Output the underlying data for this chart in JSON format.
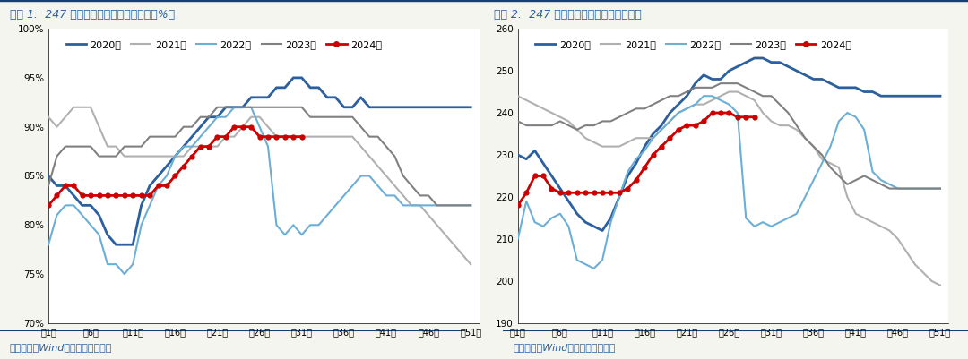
{
  "chart1_title": "图表 1:  247 家样本钢厂炼铁产能利用率（%）",
  "chart2_title": "图表 2:  247 家钢厂日均铁水产量（万吨）",
  "source_text": "资料来源：Wind，国盛证券研究所",
  "x_ticks": [
    "第1周",
    "第6周",
    "第11周",
    "第16周",
    "第21周",
    "第26周",
    "第31周",
    "第36周",
    "第41周",
    "第46周",
    "第51周"
  ],
  "x_tick_pos": [
    1,
    6,
    11,
    16,
    21,
    26,
    31,
    36,
    41,
    46,
    51
  ],
  "legend_labels": [
    "2020年",
    "2021年",
    "2022年",
    "2023年",
    "2024年"
  ],
  "colors": {
    "2020": "#2c5f9e",
    "2021": "#b0b0b0",
    "2022": "#6baed6",
    "2023": "#808080",
    "2024": "#cc0000"
  },
  "title_color": "#2c5f9e",
  "source_color": "#2c5f9e",
  "background": "#f5f5f0",
  "chart1_ylim": [
    70,
    100
  ],
  "chart1_yticks": [
    70,
    75,
    80,
    85,
    90,
    95,
    100
  ],
  "chart1_ytick_labels": [
    "70%",
    "75%",
    "80%",
    "85%",
    "90%",
    "95%",
    "100%"
  ],
  "chart2_ylim": [
    190,
    260
  ],
  "chart2_yticks": [
    190,
    200,
    210,
    220,
    230,
    240,
    250,
    260
  ],
  "chart2_ytick_labels": [
    "190",
    "200",
    "210",
    "220",
    "230",
    "240",
    "250",
    "260"
  ],
  "chart1_2020": [
    85,
    84,
    84,
    83,
    82,
    82,
    81,
    79,
    78,
    78,
    78,
    82,
    84,
    85,
    86,
    87,
    88,
    89,
    90,
    91,
    91,
    92,
    92,
    92,
    93,
    93,
    93,
    94,
    94,
    95,
    95,
    94,
    94,
    93,
    93,
    92,
    92,
    93,
    92,
    92,
    92,
    92,
    92,
    92,
    92,
    92,
    92,
    92,
    92,
    92,
    92
  ],
  "chart1_2021": [
    91,
    90,
    91,
    92,
    92,
    92,
    90,
    88,
    88,
    87,
    87,
    87,
    87,
    87,
    87,
    87,
    87,
    88,
    88,
    88,
    88,
    89,
    89,
    90,
    91,
    91,
    90,
    89,
    89,
    89,
    89,
    89,
    89,
    89,
    89,
    89,
    89,
    88,
    87,
    86,
    85,
    84,
    83,
    82,
    82,
    81,
    80,
    79,
    78,
    77,
    76
  ],
  "chart1_2022": [
    78,
    81,
    82,
    82,
    81,
    80,
    79,
    76,
    76,
    75,
    76,
    80,
    82,
    84,
    85,
    87,
    88,
    88,
    89,
    90,
    91,
    91,
    92,
    92,
    92,
    90,
    88,
    80,
    79,
    80,
    79,
    80,
    80,
    81,
    82,
    83,
    84,
    85,
    85,
    84,
    83,
    83,
    82,
    82,
    82,
    82,
    82,
    82,
    82,
    82,
    82
  ],
  "chart1_2023": [
    84,
    87,
    88,
    88,
    88,
    88,
    87,
    87,
    87,
    88,
    88,
    88,
    89,
    89,
    89,
    89,
    90,
    90,
    91,
    91,
    92,
    92,
    92,
    92,
    92,
    92,
    92,
    92,
    92,
    92,
    92,
    91,
    91,
    91,
    91,
    91,
    91,
    90,
    89,
    89,
    88,
    87,
    85,
    84,
    83,
    83,
    82,
    82,
    82,
    82,
    82
  ],
  "chart1_2024": [
    82,
    83,
    84,
    84,
    83,
    83,
    83,
    83,
    83,
    83,
    83,
    83,
    83,
    84,
    84,
    85,
    86,
    87,
    88,
    88,
    89,
    89,
    90,
    90,
    90,
    89,
    89,
    89,
    89,
    89,
    89,
    null,
    null,
    null,
    null,
    null,
    null,
    null,
    null,
    null,
    null,
    null,
    null,
    null,
    null,
    null,
    null,
    null,
    null,
    null,
    null
  ],
  "chart2_2020": [
    230,
    229,
    231,
    228,
    225,
    222,
    219,
    216,
    214,
    213,
    212,
    215,
    220,
    225,
    228,
    232,
    235,
    237,
    240,
    242,
    244,
    247,
    249,
    248,
    248,
    250,
    251,
    252,
    253,
    253,
    252,
    252,
    251,
    250,
    249,
    248,
    248,
    247,
    246,
    246,
    246,
    245,
    245,
    244,
    244,
    244,
    244,
    244,
    244,
    244,
    244
  ],
  "chart2_2021": [
    244,
    243,
    242,
    241,
    240,
    239,
    238,
    236,
    234,
    233,
    232,
    232,
    232,
    233,
    234,
    234,
    234,
    236,
    238,
    240,
    241,
    242,
    242,
    243,
    244,
    245,
    245,
    244,
    243,
    240,
    238,
    237,
    237,
    236,
    234,
    232,
    229,
    228,
    227,
    220,
    216,
    215,
    214,
    213,
    212,
    210,
    207,
    204,
    202,
    200,
    199
  ],
  "chart2_2022": [
    210,
    219,
    214,
    213,
    215,
    216,
    213,
    205,
    204,
    203,
    205,
    214,
    220,
    226,
    229,
    231,
    234,
    236,
    238,
    240,
    241,
    242,
    244,
    244,
    243,
    242,
    240,
    215,
    213,
    214,
    213,
    214,
    215,
    216,
    220,
    224,
    228,
    232,
    238,
    240,
    239,
    236,
    226,
    224,
    223,
    222,
    222,
    222,
    222,
    222,
    222
  ],
  "chart2_2023": [
    238,
    237,
    237,
    237,
    237,
    238,
    237,
    236,
    237,
    237,
    238,
    238,
    239,
    240,
    241,
    241,
    242,
    243,
    244,
    244,
    245,
    246,
    246,
    246,
    247,
    247,
    247,
    246,
    245,
    244,
    244,
    242,
    240,
    237,
    234,
    232,
    230,
    227,
    225,
    223,
    224,
    225,
    224,
    223,
    222,
    222,
    222,
    222,
    222,
    222,
    222
  ],
  "chart2_2024": [
    218,
    221,
    225,
    225,
    222,
    221,
    221,
    221,
    221,
    221,
    221,
    221,
    221,
    222,
    224,
    227,
    230,
    232,
    234,
    236,
    237,
    237,
    238,
    240,
    240,
    240,
    239,
    239,
    239,
    null,
    null,
    null,
    null,
    null,
    null,
    null,
    null,
    null,
    null,
    null,
    null,
    null,
    null,
    null,
    null,
    null,
    null,
    null,
    null,
    null,
    null
  ]
}
